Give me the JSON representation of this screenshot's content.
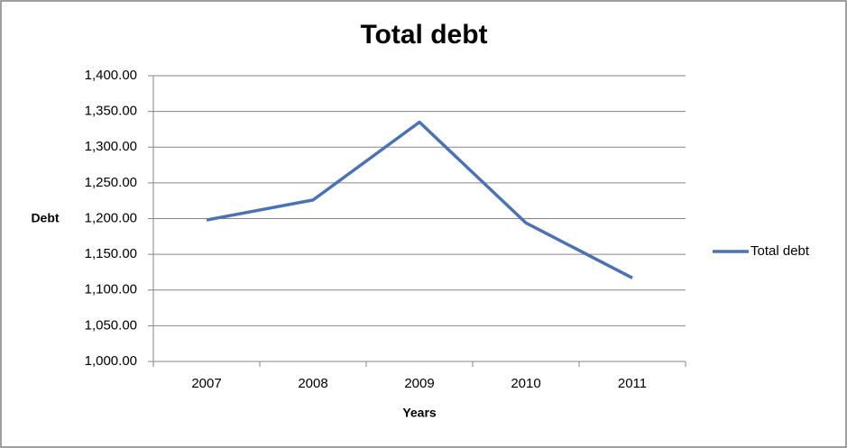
{
  "chart_data": {
    "type": "line",
    "title": "Total debt",
    "y_label": "Debt",
    "x_label": "Years",
    "categories": [
      "2007",
      "2008",
      "2009",
      "2010",
      "2011"
    ],
    "series": [
      {
        "name": "Total debt",
        "color": "#4a72b5",
        "values": [
          1198,
          1226,
          1335,
          1194,
          1117
        ]
      }
    ],
    "ylim": [
      1000,
      1400
    ],
    "yticks": [
      {
        "value": 1000,
        "label": "1,000.00"
      },
      {
        "value": 1050,
        "label": "1,050.00"
      },
      {
        "value": 1100,
        "label": "1,100.00"
      },
      {
        "value": 1150,
        "label": "1,150.00"
      },
      {
        "value": 1200,
        "label": "1,200.00"
      },
      {
        "value": 1250,
        "label": "1,250.00"
      },
      {
        "value": 1300,
        "label": "1,300.00"
      },
      {
        "value": 1350,
        "label": "1,350.00"
      },
      {
        "value": 1400,
        "label": "1,400.00"
      }
    ],
    "grid": true,
    "legend": "right"
  }
}
